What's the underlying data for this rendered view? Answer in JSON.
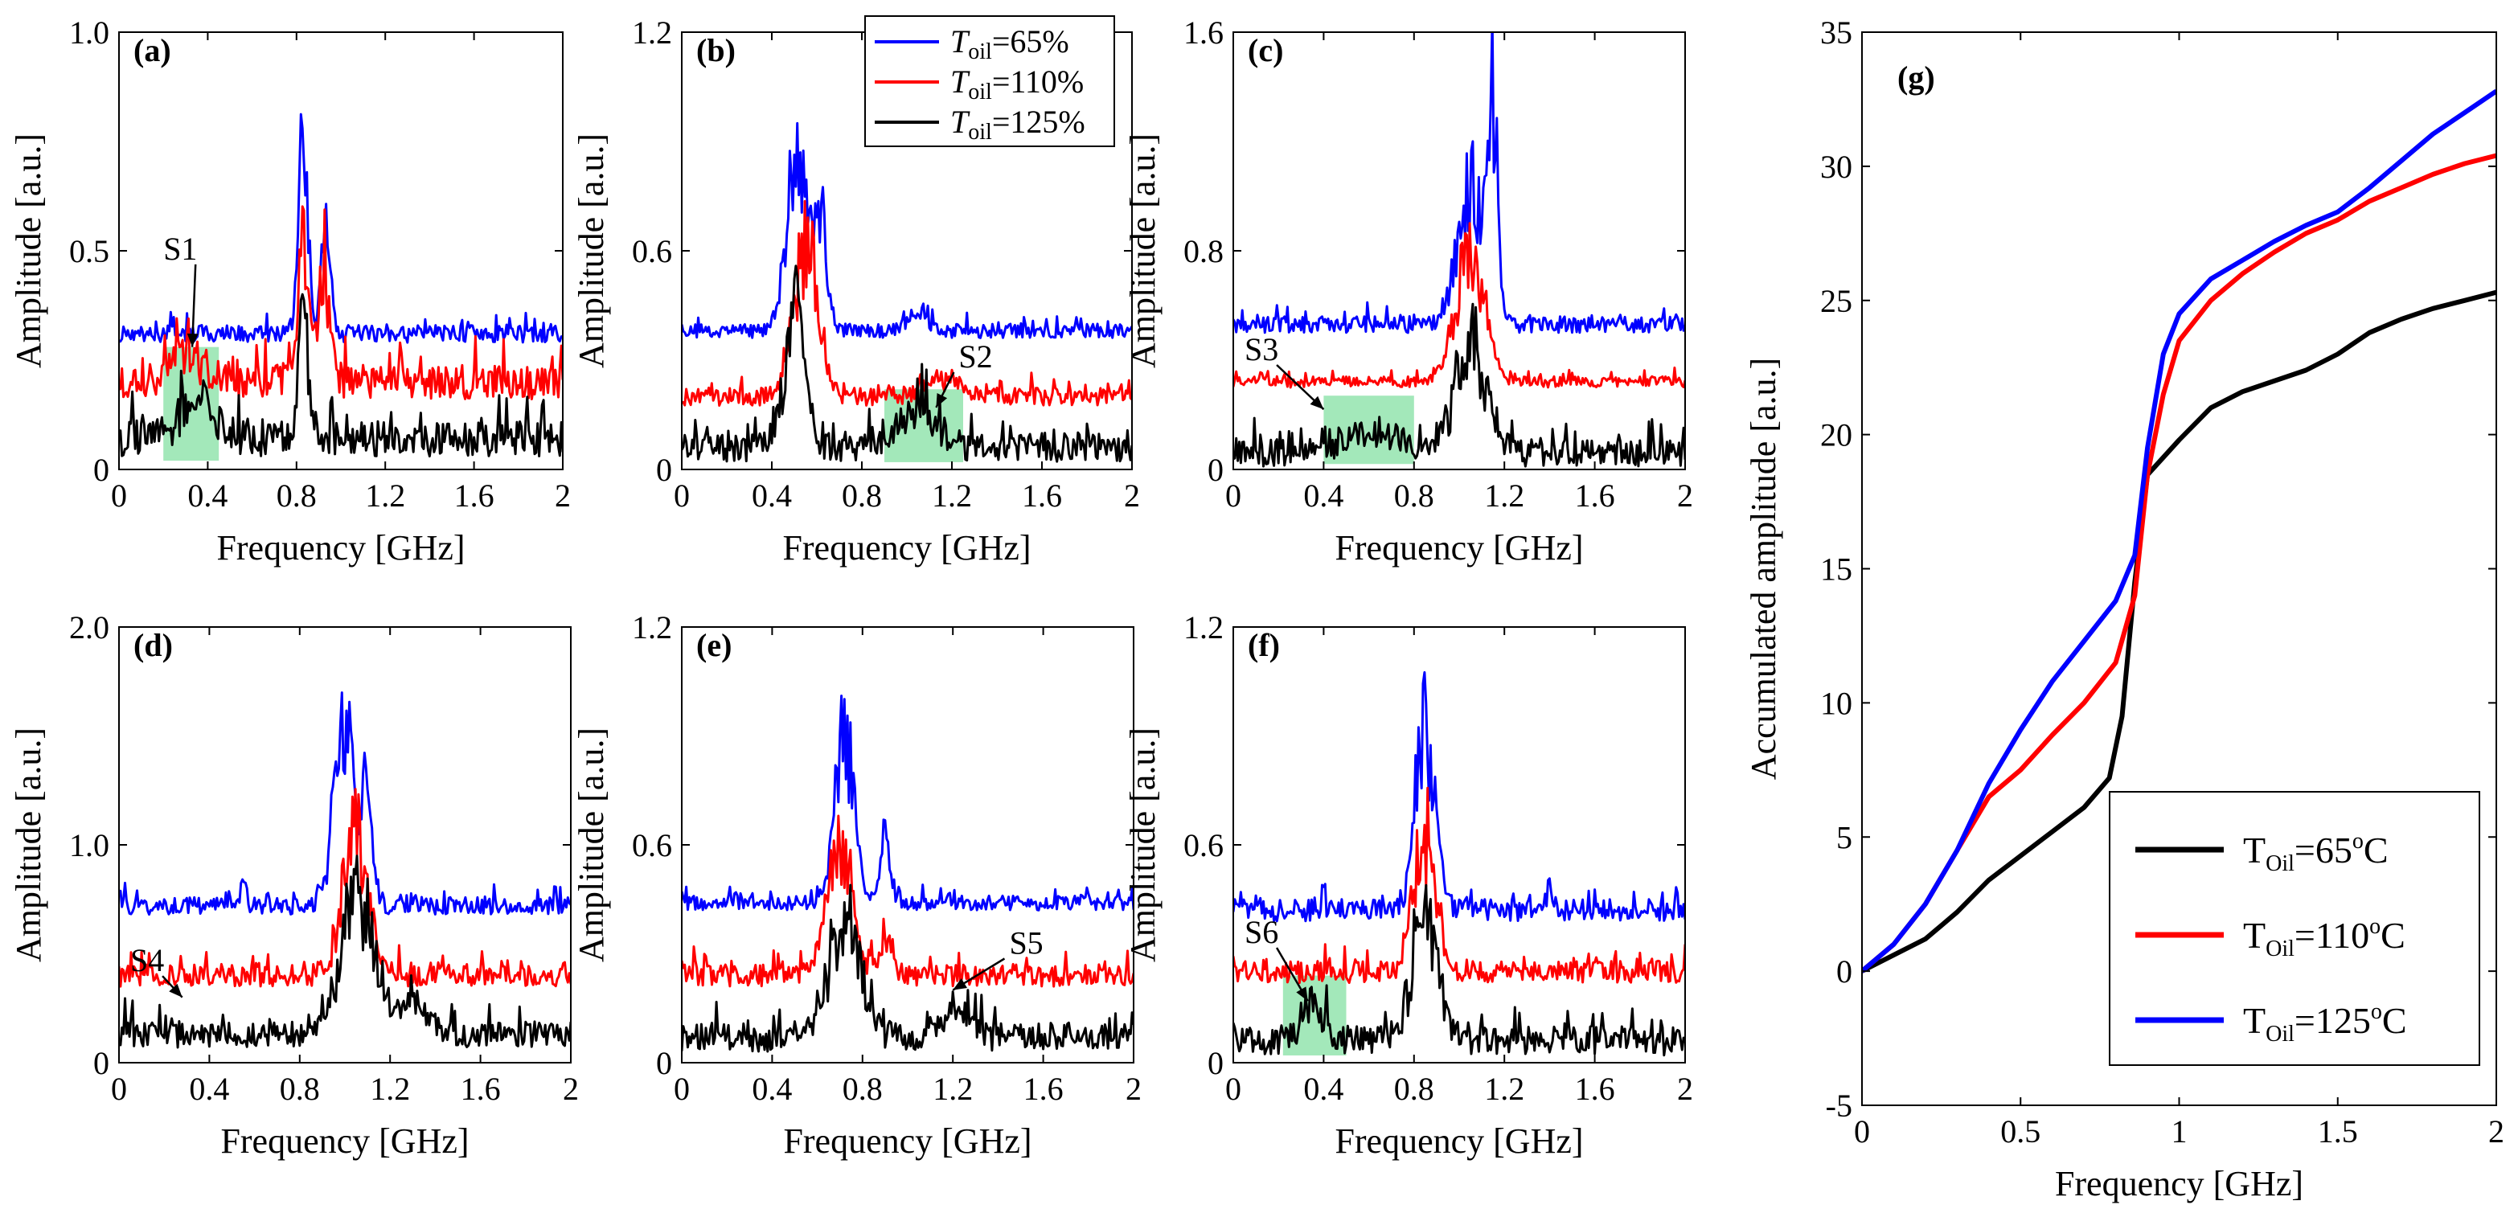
{
  "colors": {
    "blue": "#0000ff",
    "red": "#ff0000",
    "black": "#000000",
    "shade": "#33cc66"
  },
  "legend_small": [
    {
      "prefix": "T",
      "sub": "oil",
      "value": "=65%",
      "color": "#0000ff"
    },
    {
      "prefix": "T",
      "sub": "oil",
      "value": "=110%",
      "color": "#ff0000"
    },
    {
      "prefix": "T",
      "sub": "oil",
      "value": "=125%",
      "color": "#000000"
    }
  ],
  "chart_data": [
    {
      "id": "a",
      "label": "(a)",
      "type": "line",
      "xlabel": "Frequency [GHz]",
      "ylabel": "Amplitude [a.u.]",
      "xlim": [
        0,
        2
      ],
      "ylim": [
        0,
        1.0
      ],
      "xticks": [
        "0",
        "0.4",
        "0.8",
        "1.2",
        "1.6",
        "2"
      ],
      "yticks": [
        {
          "v": 0,
          "t": "0"
        },
        {
          "v": 0.5,
          "t": "0.5"
        },
        {
          "v": 1.0,
          "t": "1.0"
        }
      ],
      "series": [
        {
          "name": "T_oil=65%",
          "color": "#0000ff",
          "baseline": 0.31,
          "noise": 0.02,
          "peaks": [
            [
              0.83,
              0.55,
              0.03
            ],
            [
              0.93,
              0.3,
              0.03
            ]
          ]
        },
        {
          "name": "T_oil=110%",
          "color": "#ff0000",
          "baseline": 0.2,
          "noise": 0.04,
          "peaks": [
            [
              0.83,
              0.4,
              0.03
            ],
            [
              0.92,
              0.3,
              0.04
            ],
            [
              0.3,
              0.08,
              0.1
            ]
          ]
        },
        {
          "name": "T_oil=125%",
          "color": "#000000",
          "baseline": 0.07,
          "noise": 0.04,
          "peaks": [
            [
              0.83,
              0.35,
              0.03
            ],
            [
              0.35,
              0.08,
              0.12
            ]
          ]
        }
      ],
      "shade": {
        "x0": 0.2,
        "x1": 0.45,
        "y0": 0.02,
        "y1": 0.28
      },
      "annotation": {
        "text": "S1",
        "tx": 0.2,
        "ty": 0.48,
        "ax": 0.33,
        "ay": 0.28
      }
    },
    {
      "id": "b",
      "label": "(b)",
      "type": "line",
      "xlabel": "Frequency [GHz]",
      "ylabel": "Amplitude [a.u.]",
      "xlim": [
        0,
        2
      ],
      "ylim": [
        0,
        1.2
      ],
      "xticks": [
        "0",
        "0.4",
        "0.8",
        "1.2",
        "1.6",
        "2"
      ],
      "yticks": [
        {
          "v": 0,
          "t": "0"
        },
        {
          "v": 0.6,
          "t": "0.6"
        },
        {
          "v": 1.2,
          "t": "1.2"
        }
      ],
      "series": [
        {
          "name": "T_oil=65%",
          "color": "#0000ff",
          "baseline": 0.38,
          "noise": 0.02,
          "peaks": [
            [
              0.52,
              0.6,
              0.07
            ],
            [
              0.62,
              0.3,
              0.04
            ],
            [
              1.05,
              0.06,
              0.06
            ]
          ]
        },
        {
          "name": "T_oil=110%",
          "color": "#ff0000",
          "baseline": 0.2,
          "noise": 0.025,
          "peaks": [
            [
              0.55,
              0.48,
              0.08
            ],
            [
              1.15,
              0.06,
              0.1
            ]
          ]
        },
        {
          "name": "T_oil=125%",
          "color": "#000000",
          "baseline": 0.06,
          "noise": 0.04,
          "peaks": [
            [
              0.5,
              0.45,
              0.06
            ],
            [
              1.05,
              0.12,
              0.12
            ]
          ]
        }
      ],
      "shade": {
        "x0": 0.9,
        "x1": 1.25,
        "y0": 0.02,
        "y1": 0.22
      },
      "annotation": {
        "text": "S2",
        "tx": 1.23,
        "ty": 0.28,
        "ax": 1.13,
        "ay": 0.17
      }
    },
    {
      "id": "c",
      "label": "(c)",
      "type": "line",
      "xlabel": "Frequency [GHz]",
      "ylabel": "Amplitude [a.u.]",
      "xlim": [
        0,
        2
      ],
      "ylim": [
        0,
        1.6
      ],
      "xticks": [
        "0",
        "0.4",
        "0.8",
        "1.2",
        "1.6",
        "2"
      ],
      "yticks": [
        {
          "v": 0,
          "t": "0"
        },
        {
          "v": 0.8,
          "t": "0.8"
        },
        {
          "v": 1.6,
          "t": "1.6"
        }
      ],
      "series": [
        {
          "name": "T_oil=65%",
          "color": "#0000ff",
          "baseline": 0.53,
          "noise": 0.03,
          "peaks": [
            [
              1.05,
              0.6,
              0.08
            ],
            [
              1.15,
              0.9,
              0.03
            ]
          ]
        },
        {
          "name": "T_oil=110%",
          "color": "#ff0000",
          "baseline": 0.32,
          "noise": 0.02,
          "peaks": [
            [
              1.05,
              0.55,
              0.09
            ]
          ]
        },
        {
          "name": "T_oil=125%",
          "color": "#000000",
          "baseline": 0.06,
          "noise": 0.05,
          "peaks": [
            [
              1.05,
              0.45,
              0.1
            ],
            [
              0.6,
              0.08,
              0.2
            ]
          ]
        }
      ],
      "shade": {
        "x0": 0.4,
        "x1": 0.8,
        "y0": 0.02,
        "y1": 0.27
      },
      "annotation": {
        "text": "S3",
        "tx": 0.05,
        "ty": 0.4,
        "ax": 0.4,
        "ay": 0.22
      }
    },
    {
      "id": "d",
      "label": "(d)",
      "type": "line",
      "xlabel": "Frequency [GHz]",
      "ylabel": "Amplitude [a.u.]",
      "xlim": [
        0,
        2
      ],
      "ylim": [
        0,
        2.0
      ],
      "xticks": [
        "0",
        "0.4",
        "0.8",
        "1.2",
        "1.6",
        "2"
      ],
      "yticks": [
        {
          "v": 0,
          "t": "0"
        },
        {
          "v": 1.0,
          "t": "1.0"
        },
        {
          "v": 2.0,
          "t": "2.0"
        }
      ],
      "series": [
        {
          "name": "T_oil=65%",
          "color": "#0000ff",
          "baseline": 0.72,
          "noise": 0.04,
          "peaks": [
            [
              1.0,
              0.9,
              0.07
            ],
            [
              1.1,
              0.5,
              0.03
            ],
            [
              0.55,
              0.15,
              0.02
            ]
          ]
        },
        {
          "name": "T_oil=110%",
          "color": "#ff0000",
          "baseline": 0.4,
          "noise": 0.05,
          "peaks": [
            [
              1.05,
              0.75,
              0.08
            ]
          ]
        },
        {
          "name": "T_oil=125%",
          "color": "#000000",
          "baseline": 0.13,
          "noise": 0.06,
          "peaks": [
            [
              1.05,
              0.75,
              0.1
            ],
            [
              1.3,
              0.15,
              0.1
            ]
          ]
        }
      ],
      "annotation": {
        "text": "S4",
        "tx": 0.05,
        "ty": 0.42,
        "ax": 0.28,
        "ay": 0.3
      }
    },
    {
      "id": "e",
      "label": "(e)",
      "type": "line",
      "xlabel": "Frequency [GHz]",
      "ylabel": "Amplitude [a.u.]",
      "xlim": [
        0,
        2
      ],
      "ylim": [
        0,
        1.2
      ],
      "xticks": [
        "0",
        "0.4",
        "0.8",
        "1.2",
        "1.6",
        "2"
      ],
      "yticks": [
        {
          "v": 0,
          "t": "0"
        },
        {
          "v": 0.6,
          "t": "0.6"
        },
        {
          "v": 1.2,
          "t": "1.2"
        }
      ],
      "series": [
        {
          "name": "T_oil=65%",
          "color": "#0000ff",
          "baseline": 0.44,
          "noise": 0.02,
          "peaks": [
            [
              0.72,
              0.55,
              0.06
            ],
            [
              0.9,
              0.2,
              0.03
            ]
          ]
        },
        {
          "name": "T_oil=110%",
          "color": "#ff0000",
          "baseline": 0.24,
          "noise": 0.03,
          "peaks": [
            [
              0.7,
              0.4,
              0.08
            ],
            [
              0.9,
              0.15,
              0.04
            ]
          ]
        },
        {
          "name": "T_oil=125%",
          "color": "#000000",
          "baseline": 0.07,
          "noise": 0.04,
          "peaks": [
            [
              0.72,
              0.4,
              0.1
            ],
            [
              1.2,
              0.08,
              0.1
            ]
          ]
        }
      ],
      "annotation": {
        "text": "S5",
        "tx": 1.45,
        "ty": 0.3,
        "ax": 1.2,
        "ay": 0.2
      }
    },
    {
      "id": "f",
      "label": "(f)",
      "type": "line",
      "xlabel": "Frequency [GHz]",
      "ylabel": "Amplitude [a.u.]",
      "xlim": [
        0,
        2
      ],
      "ylim": [
        0,
        1.2
      ],
      "xticks": [
        "0",
        "0.4",
        "0.8",
        "1.2",
        "1.6",
        "2"
      ],
      "yticks": [
        {
          "v": 0,
          "t": "0"
        },
        {
          "v": 0.6,
          "t": "0.6"
        },
        {
          "v": 1.2,
          "t": "1.2"
        }
      ],
      "series": [
        {
          "name": "T_oil=65%",
          "color": "#0000ff",
          "baseline": 0.42,
          "noise": 0.03,
          "peaks": [
            [
              0.85,
              0.6,
              0.06
            ],
            [
              1.4,
              0.06,
              0.03
            ]
          ]
        },
        {
          "name": "T_oil=110%",
          "color": "#ff0000",
          "baseline": 0.25,
          "noise": 0.03,
          "peaks": [
            [
              0.85,
              0.45,
              0.07
            ]
          ]
        },
        {
          "name": "T_oil=125%",
          "color": "#000000",
          "baseline": 0.06,
          "noise": 0.04,
          "peaks": [
            [
              0.85,
              0.45,
              0.08
            ],
            [
              0.35,
              0.1,
              0.08
            ]
          ]
        }
      ],
      "shade": {
        "x0": 0.22,
        "x1": 0.5,
        "y0": 0.02,
        "y1": 0.24
      },
      "annotation": {
        "text": "S6",
        "tx": 0.05,
        "ty": 0.33,
        "ax": 0.33,
        "ay": 0.17
      }
    },
    {
      "id": "g",
      "label": "(g)",
      "type": "line",
      "xlabel": "Frequency [GHz]",
      "ylabel": "Accumulated amplitude [a.u.]",
      "xlim": [
        0,
        2
      ],
      "ylim": [
        -5,
        35
      ],
      "xticks": [
        {
          "v": 0,
          "t": "0"
        },
        {
          "v": 0.5,
          "t": "0.5"
        },
        {
          "v": 1,
          "t": "1"
        },
        {
          "v": 1.5,
          "t": "1.5"
        },
        {
          "v": 2,
          "t": "2"
        }
      ],
      "yticks": [
        {
          "v": -5,
          "t": "-5"
        },
        {
          "v": 0,
          "t": "0"
        },
        {
          "v": 5,
          "t": "5"
        },
        {
          "v": 10,
          "t": "10"
        },
        {
          "v": 15,
          "t": "15"
        },
        {
          "v": 20,
          "t": "20"
        },
        {
          "v": 25,
          "t": "25"
        },
        {
          "v": 30,
          "t": "30"
        },
        {
          "v": 35,
          "t": "35"
        }
      ],
      "series": [
        {
          "name": "T_Oil=65°C",
          "color": "#000000",
          "x": [
            0,
            0.1,
            0.2,
            0.3,
            0.4,
            0.5,
            0.6,
            0.7,
            0.78,
            0.82,
            0.86,
            0.9,
            1.0,
            1.1,
            1.2,
            1.3,
            1.4,
            1.5,
            1.6,
            1.7,
            1.8,
            1.9,
            2.0
          ],
          "y": [
            0,
            0.6,
            1.2,
            2.2,
            3.4,
            4.3,
            5.2,
            6.1,
            7.2,
            9.5,
            14.5,
            18.5,
            19.8,
            21.0,
            21.6,
            22.0,
            22.4,
            23.0,
            23.8,
            24.3,
            24.7,
            25.0,
            25.3
          ]
        },
        {
          "name": "T_Oil=110°C",
          "color": "#ff0000",
          "x": [
            0,
            0.1,
            0.2,
            0.3,
            0.4,
            0.5,
            0.6,
            0.7,
            0.8,
            0.86,
            0.9,
            0.95,
            1.0,
            1.1,
            1.2,
            1.3,
            1.4,
            1.5,
            1.6,
            1.7,
            1.8,
            1.9,
            2.0
          ],
          "y": [
            0,
            1.0,
            2.5,
            4.5,
            6.5,
            7.5,
            8.8,
            10.0,
            11.5,
            14.0,
            18.5,
            21.5,
            23.5,
            25.0,
            26.0,
            26.8,
            27.5,
            28.0,
            28.7,
            29.2,
            29.7,
            30.1,
            30.4
          ]
        },
        {
          "name": "T_Oil=125°C",
          "color": "#0000ff",
          "x": [
            0,
            0.1,
            0.2,
            0.3,
            0.4,
            0.5,
            0.6,
            0.7,
            0.8,
            0.86,
            0.9,
            0.95,
            1.0,
            1.1,
            1.2,
            1.3,
            1.4,
            1.5,
            1.6,
            1.7,
            1.8,
            1.9,
            2.0
          ],
          "y": [
            0,
            1.0,
            2.5,
            4.5,
            7.0,
            9.0,
            10.8,
            12.3,
            13.8,
            15.5,
            19.5,
            23.0,
            24.5,
            25.8,
            26.5,
            27.2,
            27.8,
            28.3,
            29.2,
            30.2,
            31.2,
            32.0,
            32.8
          ]
        }
      ],
      "legend": [
        {
          "prefix": "T",
          "sub": "Oil",
          "value": "=65",
          "sup": "o",
          "unit": "C",
          "color": "#000000"
        },
        {
          "prefix": "T",
          "sub": "Oil",
          "value": "=110",
          "sup": "o",
          "unit": "C",
          "color": "#ff0000"
        },
        {
          "prefix": "T",
          "sub": "Oil",
          "value": "=125",
          "sup": "o",
          "unit": "C",
          "color": "#0000ff"
        }
      ]
    }
  ]
}
